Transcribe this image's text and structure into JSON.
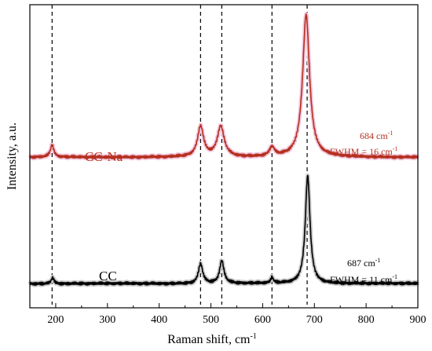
{
  "chart_data": {
    "type": "line",
    "title": "",
    "xlabel": "Raman shift, cm",
    "xlabel_sup": "-1",
    "ylabel": "Intensity, a.u.",
    "xlim": [
      150,
      900
    ],
    "ylim": [
      0,
      1
    ],
    "xticks": [
      200,
      300,
      400,
      500,
      600,
      700,
      800,
      900
    ],
    "y_tick_labels": false,
    "grid": false,
    "reference_lines_x": [
      193,
      480,
      521,
      618,
      686
    ],
    "series": [
      {
        "name": "CC-Na",
        "color": "#b5301f",
        "halo_color": "#f2c6dc",
        "baseline": 0.497,
        "peaks": [
          {
            "center": 193,
            "height": 0.04,
            "width": 4
          },
          {
            "center": 480,
            "height": 0.1,
            "width": 7
          },
          {
            "center": 519,
            "height": 0.1,
            "width": 8
          },
          {
            "center": 618,
            "height": 0.03,
            "width": 6
          },
          {
            "center": 684,
            "height": 0.47,
            "width": 8
          }
        ],
        "annotation": {
          "peak": "684 cm",
          "peak_sup": "-1",
          "fwhm": "FWHM = 16 cm",
          "fwhm_sup": "-1"
        }
      },
      {
        "name": "CC",
        "color": "#000000",
        "halo_color": "#c8c8c8",
        "baseline": 0.08,
        "peaks": [
          {
            "center": 194,
            "height": 0.02,
            "width": 3
          },
          {
            "center": 480,
            "height": 0.065,
            "width": 5
          },
          {
            "center": 521,
            "height": 0.075,
            "width": 5
          },
          {
            "center": 618,
            "height": 0.02,
            "width": 3
          },
          {
            "center": 687,
            "height": 0.355,
            "width": 5.5
          }
        ],
        "annotation": {
          "peak": "687 cm",
          "peak_sup": "-1",
          "fwhm": "FWHM = 11 cm",
          "fwhm_sup": "-1"
        }
      }
    ]
  }
}
